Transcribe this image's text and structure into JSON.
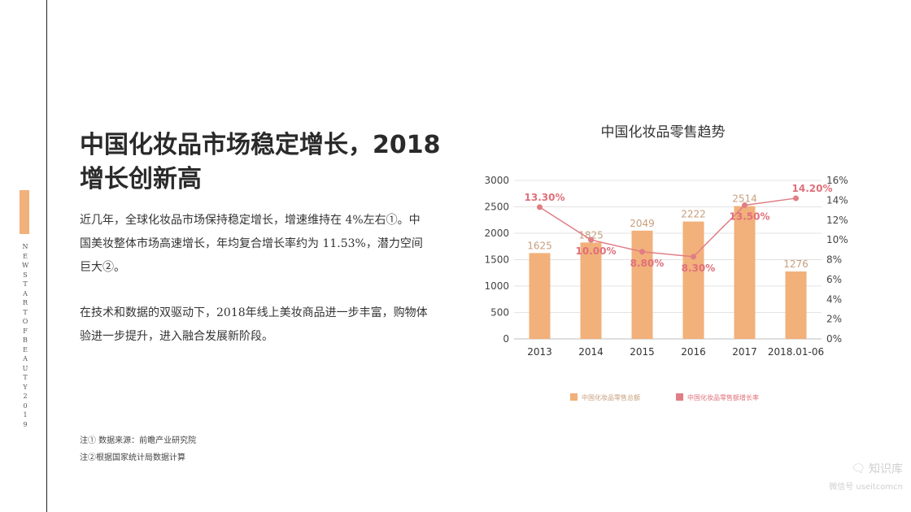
{
  "sidebar": {
    "vertical_text": "NEW START OF BEAUTY 2019"
  },
  "headline": "中国化妆品市场稳定增长，2018增长创新高",
  "paragraphs": [
    "近几年，全球化妆品市场保持稳定增长，增速维持在 4%左右①。中国美妆整体市场高速增长，年均复合增长率约为 11.53%，潜力空间巨大②。",
    "在技术和数据的双驱动下，2018年线上美妆商品进一步丰富，购物体验进一步提升，进入融合发展新阶段。"
  ],
  "notes": [
    "注①  数据来源：前瞻产业研究院",
    "注②根据国家统计局数据计算"
  ],
  "watermark": {
    "icon": "wechat-icon",
    "name": "知识库",
    "sub": "微信号 useitcomcn"
  },
  "colors": {
    "bar": "#f2b07a",
    "bar_label": "#c79f7c",
    "line": "#e07e84",
    "line_label": "#e0707a",
    "grid": "#e3e3e3"
  },
  "chart_data": {
    "type": "bar",
    "title": "中国化妆品零售趋势",
    "categories": [
      "2013",
      "2014",
      "2015",
      "2016",
      "2017",
      "2018.01-06"
    ],
    "series": [
      {
        "name": "中国化妆品零售总额",
        "type": "bar",
        "axis": "left",
        "values": [
          1625,
          1825,
          2049,
          2222,
          2514,
          1276
        ],
        "labels": [
          "1625",
          "1825",
          "2049",
          "2222",
          "2514",
          "1276"
        ]
      },
      {
        "name": "中国化妆品零售额增长率",
        "type": "line",
        "axis": "right",
        "values": [
          13.3,
          10.0,
          8.8,
          8.3,
          13.5,
          14.2
        ],
        "labels": [
          "13.30%",
          "10.00%",
          "8.80%",
          "8.30%",
          "13.50%",
          "14.20%"
        ]
      }
    ],
    "ylim_left": [
      0,
      3000
    ],
    "yticks_left": [
      "0",
      "500",
      "1000",
      "1500",
      "2000",
      "2500",
      "3000"
    ],
    "ylim_right": [
      0,
      16
    ],
    "yticks_right": [
      "0%",
      "2%",
      "4%",
      "6%",
      "8%",
      "10%",
      "12%",
      "14%",
      "16%"
    ],
    "grid": true,
    "legend": "bottom"
  }
}
